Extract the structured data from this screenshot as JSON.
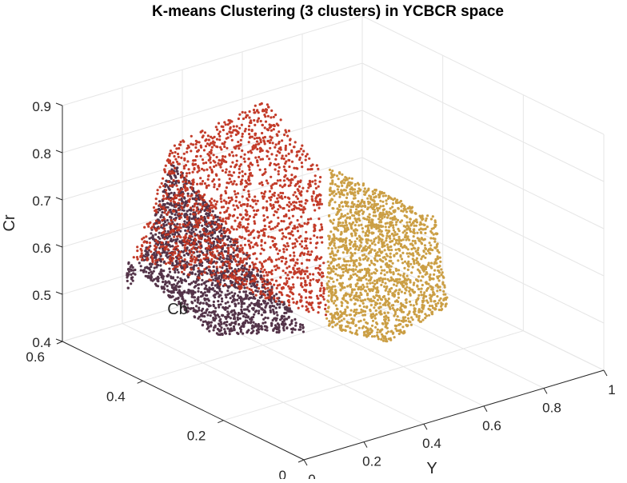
{
  "chart_data": {
    "type": "scatter",
    "title": "K-means Clustering (3 clusters) in YCBCR space",
    "xlabel": "Y",
    "ylabel": "Cb",
    "zlabel": "Cr",
    "xlim": [
      0,
      1
    ],
    "ylim": [
      0,
      0.6
    ],
    "zlim": [
      0.4,
      0.9
    ],
    "x_ticks": [
      "0",
      "0.2",
      "0.4",
      "0.6",
      "0.8",
      "1"
    ],
    "y_ticks": [
      "0",
      "0.2",
      "0.4",
      "0.6"
    ],
    "z_ticks": [
      "0.4",
      "0.5",
      "0.6",
      "0.7",
      "0.8",
      "0.9"
    ],
    "grid": true,
    "view": "3d",
    "series": [
      {
        "color": "#4b2a40",
        "region": [
          [
            0.15,
            0.55,
            0.48
          ],
          [
            0.08,
            0.5,
            0.6
          ],
          [
            0.1,
            0.3,
            0.52
          ],
          [
            0.35,
            0.25,
            0.5
          ],
          [
            0.3,
            0.55,
            0.75
          ]
        ]
      },
      {
        "color": "#c0321f",
        "region": [
          [
            0.1,
            0.5,
            0.6
          ],
          [
            0.3,
            0.55,
            0.78
          ],
          [
            0.55,
            0.5,
            0.85
          ],
          [
            0.62,
            0.42,
            0.72
          ],
          [
            0.45,
            0.28,
            0.5
          ]
        ]
      },
      {
        "color": "#c99a3c",
        "region": [
          [
            0.45,
            0.28,
            0.48
          ],
          [
            0.65,
            0.42,
            0.72
          ],
          [
            1.0,
            0.42,
            0.55
          ],
          [
            0.75,
            0.2,
            0.5
          ],
          [
            0.55,
            0.2,
            0.46
          ]
        ]
      }
    ]
  }
}
